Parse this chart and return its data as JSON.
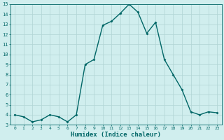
{
  "x": [
    0,
    1,
    2,
    3,
    4,
    5,
    6,
    7,
    8,
    9,
    10,
    11,
    12,
    13,
    14,
    15,
    16,
    17,
    18,
    19,
    20,
    21,
    22,
    23
  ],
  "y": [
    4.0,
    3.8,
    3.3,
    3.5,
    4.0,
    3.8,
    3.3,
    4.0,
    9.0,
    9.5,
    12.9,
    13.3,
    14.1,
    15.0,
    14.2,
    12.1,
    13.2,
    9.5,
    8.0,
    6.5,
    4.3,
    4.0,
    4.3,
    4.2
  ],
  "line_color": "#006666",
  "marker": "D",
  "marker_size": 1.5,
  "linewidth": 1.0,
  "bg_color": "#d0eeee",
  "grid_color": "#b0d4d4",
  "xlabel": "Humidex (Indice chaleur)",
  "xlabel_fontsize": 6.5,
  "tick_color": "#006666",
  "ylim": [
    3,
    15
  ],
  "xlim": [
    -0.5,
    23.5
  ],
  "yticks": [
    3,
    4,
    5,
    6,
    7,
    8,
    9,
    10,
    11,
    12,
    13,
    14,
    15
  ],
  "xticks": [
    0,
    1,
    2,
    3,
    4,
    5,
    6,
    7,
    8,
    9,
    10,
    11,
    12,
    13,
    14,
    15,
    16,
    17,
    18,
    19,
    20,
    21,
    22,
    23
  ]
}
